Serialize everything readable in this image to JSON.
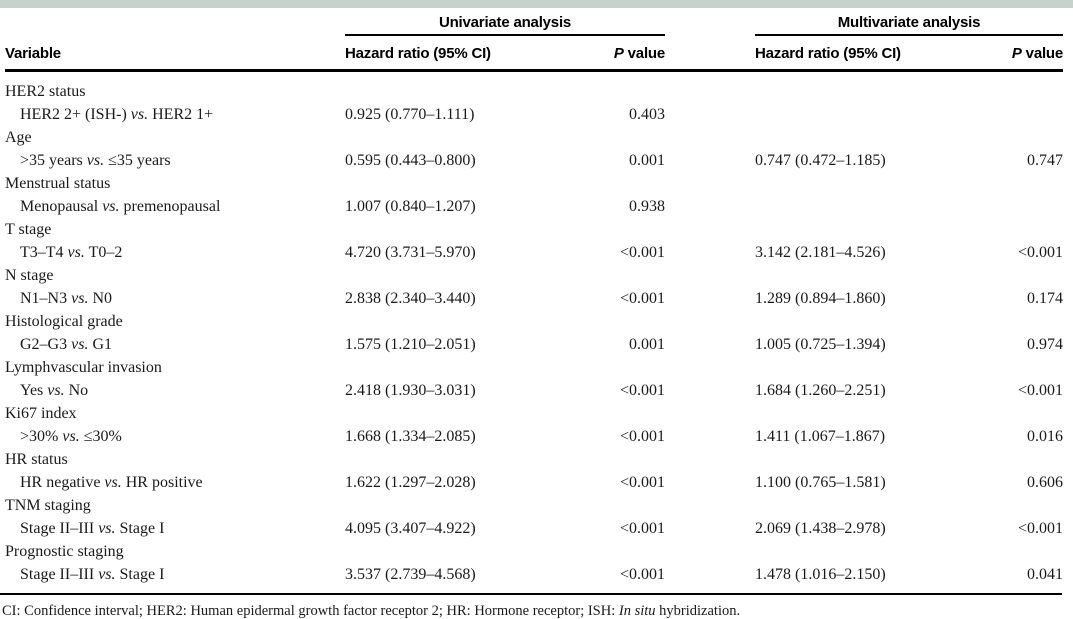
{
  "top_band_color": "#c6d3cb",
  "header": {
    "variable_label": "Variable",
    "spanners": [
      {
        "label": "Univariate analysis"
      },
      {
        "label": "Multivariate analysis"
      }
    ],
    "hr_header": "Hazard ratio (95% CI)",
    "p_header_italic": "P",
    "p_header_rest": " value"
  },
  "vs_label": "vs.",
  "rows": [
    {
      "kind": "category",
      "label": "HER2 status"
    },
    {
      "kind": "comparison",
      "pre": "HER2 2+ (ISH-) ",
      "post": " HER2 1+",
      "uni_hr": "0.925 (0.770–1.111)",
      "uni_p": "0.403",
      "multi_hr": "",
      "multi_p": ""
    },
    {
      "kind": "category",
      "label": "Age"
    },
    {
      "kind": "comparison",
      "pre": ">35 years ",
      "post": " ≤35 years",
      "uni_hr": "0.595 (0.443–0.800)",
      "uni_p": "0.001",
      "multi_hr": "0.747 (0.472–1.185)",
      "multi_p": "0.747"
    },
    {
      "kind": "category",
      "label": "Menstrual status"
    },
    {
      "kind": "comparison",
      "pre": "Menopausal ",
      "post": " premenopausal",
      "uni_hr": "1.007 (0.840–1.207)",
      "uni_p": "0.938",
      "multi_hr": "",
      "multi_p": ""
    },
    {
      "kind": "category",
      "label": "T stage"
    },
    {
      "kind": "comparison",
      "pre": "T3–T4 ",
      "post": " T0–2",
      "uni_hr": "4.720 (3.731–5.970)",
      "uni_p": "<0.001",
      "multi_hr": "3.142 (2.181–4.526)",
      "multi_p": "<0.001"
    },
    {
      "kind": "category",
      "label": "N stage"
    },
    {
      "kind": "comparison",
      "pre": "N1–N3 ",
      "post": " N0",
      "uni_hr": "2.838 (2.340–3.440)",
      "uni_p": "<0.001",
      "multi_hr": "1.289 (0.894–1.860)",
      "multi_p": "0.174"
    },
    {
      "kind": "category",
      "label": "Histological grade"
    },
    {
      "kind": "comparison",
      "pre": "G2–G3 ",
      "post": " G1",
      "uni_hr": "1.575 (1.210–2.051)",
      "uni_p": "0.001",
      "multi_hr": "1.005 (0.725–1.394)",
      "multi_p": "0.974"
    },
    {
      "kind": "category",
      "label": "Lymphvascular invasion"
    },
    {
      "kind": "comparison",
      "pre": "Yes ",
      "post": " No",
      "uni_hr": "2.418 (1.930–3.031)",
      "uni_p": "<0.001",
      "multi_hr": "1.684 (1.260–2.251)",
      "multi_p": "<0.001"
    },
    {
      "kind": "category",
      "label": "Ki67 index"
    },
    {
      "kind": "comparison",
      "pre": ">30% ",
      "post": " ≤30%",
      "uni_hr": "1.668 (1.334–2.085)",
      "uni_p": "<0.001",
      "multi_hr": "1.411 (1.067–1.867)",
      "multi_p": "0.016"
    },
    {
      "kind": "category",
      "label": "HR status"
    },
    {
      "kind": "comparison",
      "pre": "HR negative ",
      "post": " HR positive",
      "uni_hr": "1.622 (1.297–2.028)",
      "uni_p": "<0.001",
      "multi_hr": "1.100 (0.765–1.581)",
      "multi_p": "0.606"
    },
    {
      "kind": "category",
      "label": "TNM staging"
    },
    {
      "kind": "comparison",
      "pre": "Stage II–III ",
      "post": " Stage I",
      "uni_hr": "4.095 (3.407–4.922)",
      "uni_p": "<0.001",
      "multi_hr": "2.069 (1.438–2.978)",
      "multi_p": "<0.001"
    },
    {
      "kind": "category",
      "label": "Prognostic staging"
    },
    {
      "kind": "comparison",
      "pre": "Stage II–III ",
      "post": " Stage I",
      "uni_hr": "3.537 (2.739–4.568)",
      "uni_p": "<0.001",
      "multi_hr": "1.478 (1.016–2.150)",
      "multi_p": "0.041"
    }
  ],
  "footnote": {
    "part1": "CI: Confidence interval; HER2: Human epidermal growth factor receptor 2; HR: Hormone receptor; ISH: ",
    "italic": "In situ",
    "part2": " hybridization."
  }
}
